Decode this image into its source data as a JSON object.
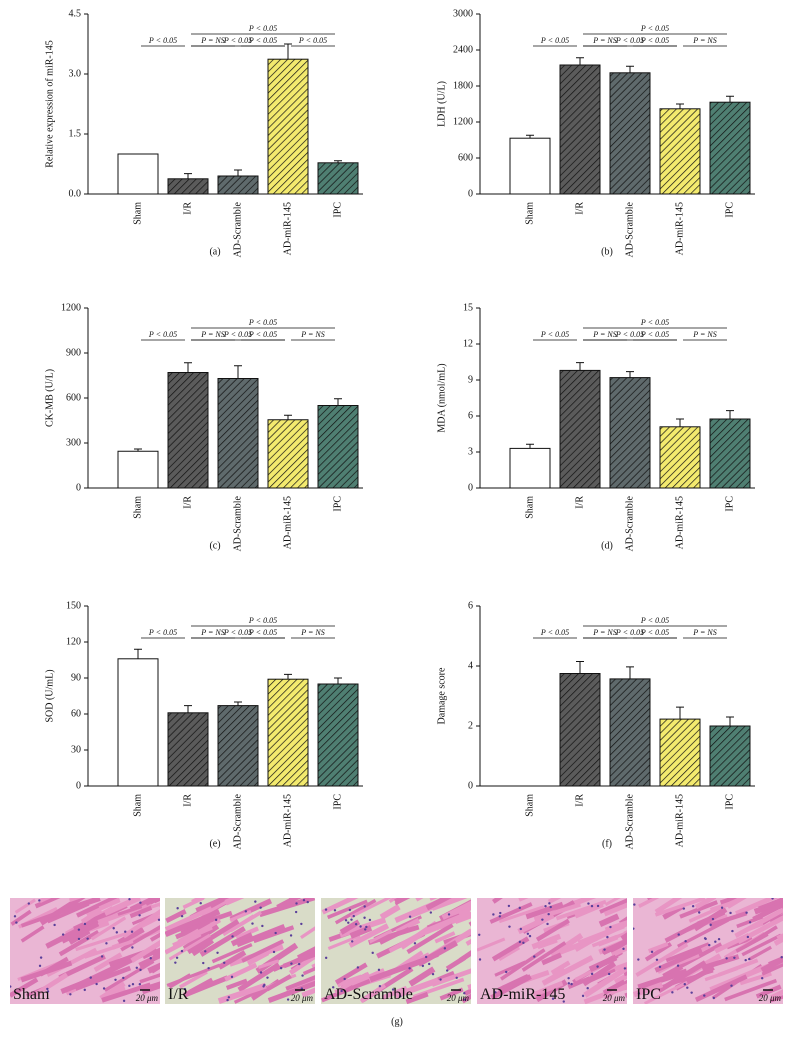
{
  "chart_data": [
    {
      "type": "bar",
      "panel_label": "(a)",
      "y_label": "Relative expression of miR-145",
      "categories": [
        "Sham",
        "I/R",
        "AD-Scramble",
        "AD-miR-145",
        "IPC"
      ],
      "values": [
        1.0,
        0.38,
        0.45,
        3.37,
        0.78
      ],
      "errors": [
        null,
        0.13,
        0.15,
        0.38,
        0.05
      ],
      "colors": [
        "#ffffff",
        "#5b5b5b",
        "#5f6a6c",
        "#f3ea6e",
        "#4f7f72"
      ],
      "hatch": [
        false,
        true,
        true,
        true,
        true
      ],
      "ylim": [
        0,
        4.5
      ],
      "yticks": [
        {
          "value": 0,
          "label": "0.0"
        },
        1.5,
        {
          "value": 3,
          "label": "3.0"
        },
        4.5
      ],
      "brackets": [
        {
          "from": "Sham",
          "to": "I/R",
          "label": "P < 0.05"
        },
        {
          "from": "I/R",
          "to": "AD-Scramble",
          "label": "P = NS"
        },
        {
          "from": "AD-Scramble",
          "to": "AD-miR-145",
          "label": "P < 0.05"
        },
        {
          "from": "AD-miR-145",
          "to": "IPC",
          "label": "P < 0.05"
        },
        {
          "from": "I/R",
          "to": "AD-miR-145",
          "label": "P < 0.05"
        },
        {
          "from": "I/R",
          "to": "IPC",
          "label": "P < 0.05"
        }
      ]
    },
    {
      "type": "bar",
      "panel_label": "(b)",
      "y_label": "LDH (U/L)",
      "categories": [
        "Sham",
        "I/R",
        "AD-Scramble",
        "AD-miR-145",
        "IPC"
      ],
      "values": [
        930,
        2150,
        2020,
        1420,
        1530
      ],
      "errors": [
        50,
        120,
        110,
        80,
        100
      ],
      "colors": [
        "#ffffff",
        "#5b5b5b",
        "#5f6a6c",
        "#f3ea6e",
        "#4f7f72"
      ],
      "hatch": [
        false,
        true,
        true,
        true,
        true
      ],
      "ylim": [
        0,
        3000
      ],
      "yticks": [
        0,
        600,
        1200,
        1800,
        2400,
        3000
      ],
      "brackets": [
        {
          "from": "Sham",
          "to": "I/R",
          "label": "P < 0.05"
        },
        {
          "from": "I/R",
          "to": "AD-Scramble",
          "label": "P = NS"
        },
        {
          "from": "AD-Scramble",
          "to": "AD-miR-145",
          "label": "P < 0.05"
        },
        {
          "from": "AD-miR-145",
          "to": "IPC",
          "label": "P = NS"
        },
        {
          "from": "I/R",
          "to": "AD-miR-145",
          "label": "P < 0.05"
        },
        {
          "from": "I/R",
          "to": "IPC",
          "label": "P < 0.05"
        }
      ]
    },
    {
      "type": "bar",
      "panel_label": "(c)",
      "y_label": "CK-MB (U/L)",
      "categories": [
        "Sham",
        "I/R",
        "AD-Scramble",
        "AD-miR-145",
        "IPC"
      ],
      "values": [
        245,
        770,
        730,
        455,
        550
      ],
      "errors": [
        15,
        65,
        85,
        30,
        45
      ],
      "colors": [
        "#ffffff",
        "#5b5b5b",
        "#5f6a6c",
        "#f3ea6e",
        "#4f7f72"
      ],
      "hatch": [
        false,
        true,
        true,
        true,
        true
      ],
      "ylim": [
        0,
        1200
      ],
      "yticks": [
        0,
        300,
        600,
        900,
        1200
      ],
      "brackets": [
        {
          "from": "Sham",
          "to": "I/R",
          "label": "P < 0.05"
        },
        {
          "from": "I/R",
          "to": "AD-Scramble",
          "label": "P = NS"
        },
        {
          "from": "AD-Scramble",
          "to": "AD-miR-145",
          "label": "P < 0.05"
        },
        {
          "from": "AD-miR-145",
          "to": "IPC",
          "label": "P = NS"
        },
        {
          "from": "I/R",
          "to": "AD-miR-145",
          "label": "P < 0.05"
        },
        {
          "from": "I/R",
          "to": "IPC",
          "label": "P < 0.05"
        }
      ]
    },
    {
      "type": "bar",
      "panel_label": "(d)",
      "y_label": "MDA (nmol/mL)",
      "categories": [
        "Sham",
        "I/R",
        "AD-Scramble",
        "AD-miR-145",
        "IPC"
      ],
      "values": [
        3.3,
        9.8,
        9.2,
        5.1,
        5.75
      ],
      "errors": [
        0.35,
        0.65,
        0.5,
        0.65,
        0.7
      ],
      "colors": [
        "#ffffff",
        "#5b5b5b",
        "#5f6a6c",
        "#f3ea6e",
        "#4f7f72"
      ],
      "hatch": [
        false,
        true,
        true,
        true,
        true
      ],
      "ylim": [
        0,
        15
      ],
      "yticks": [
        0,
        3,
        6,
        9,
        12,
        15
      ],
      "brackets": [
        {
          "from": "Sham",
          "to": "I/R",
          "label": "P < 0.05"
        },
        {
          "from": "I/R",
          "to": "AD-Scramble",
          "label": "P = NS"
        },
        {
          "from": "AD-Scramble",
          "to": "AD-miR-145",
          "label": "P < 0.05"
        },
        {
          "from": "AD-miR-145",
          "to": "IPC",
          "label": "P = NS"
        },
        {
          "from": "I/R",
          "to": "AD-miR-145",
          "label": "P < 0.05"
        },
        {
          "from": "I/R",
          "to": "IPC",
          "label": "P < 0.05"
        }
      ]
    },
    {
      "type": "bar",
      "panel_label": "(e)",
      "y_label": "SOD (U/mL)",
      "categories": [
        "Sham",
        "I/R",
        "AD-Scramble",
        "AD-miR-145",
        "IPC"
      ],
      "values": [
        106,
        61,
        67,
        89,
        85
      ],
      "errors": [
        8,
        6,
        3,
        4,
        5
      ],
      "colors": [
        "#ffffff",
        "#5b5b5b",
        "#5f6a6c",
        "#f3ea6e",
        "#4f7f72"
      ],
      "hatch": [
        false,
        true,
        true,
        true,
        true
      ],
      "ylim": [
        0,
        150
      ],
      "yticks": [
        0,
        30,
        60,
        90,
        120,
        150
      ],
      "brackets": [
        {
          "from": "Sham",
          "to": "I/R",
          "label": "P < 0.05"
        },
        {
          "from": "I/R",
          "to": "AD-Scramble",
          "label": "P = NS"
        },
        {
          "from": "AD-Scramble",
          "to": "AD-miR-145",
          "label": "P < 0.05"
        },
        {
          "from": "AD-miR-145",
          "to": "IPC",
          "label": "P = NS"
        },
        {
          "from": "I/R",
          "to": "AD-miR-145",
          "label": "P < 0.05"
        },
        {
          "from": "I/R",
          "to": "IPC",
          "label": "P < 0.05"
        }
      ]
    },
    {
      "type": "bar",
      "panel_label": "(f)",
      "y_label": "Damage score",
      "categories": [
        "Sham",
        "I/R",
        "AD-Scramble",
        "AD-miR-145",
        "IPC"
      ],
      "values": [
        0,
        3.75,
        3.57,
        2.23,
        2.0
      ],
      "errors": [
        null,
        0.4,
        0.4,
        0.4,
        0.3
      ],
      "colors": [
        "#ffffff",
        "#5b5b5b",
        "#5f6a6c",
        "#f3ea6e",
        "#4f7f72"
      ],
      "hatch": [
        false,
        true,
        true,
        true,
        true
      ],
      "ylim": [
        0,
        6
      ],
      "yticks": [
        0,
        2,
        4,
        6
      ],
      "brackets": [
        {
          "from": "Sham",
          "to": "I/R",
          "label": "P < 0.05"
        },
        {
          "from": "I/R",
          "to": "AD-Scramble",
          "label": "P = NS"
        },
        {
          "from": "AD-Scramble",
          "to": "AD-miR-145",
          "label": "P < 0.05"
        },
        {
          "from": "AD-miR-145",
          "to": "IPC",
          "label": "P = NS"
        },
        {
          "from": "I/R",
          "to": "AD-miR-145",
          "label": "P < 0.05"
        },
        {
          "from": "I/R",
          "to": "IPC",
          "label": "P < 0.05"
        }
      ]
    }
  ],
  "histology": {
    "caption": "(g)",
    "panels": [
      {
        "label": "Sham",
        "scale": "20 μm"
      },
      {
        "label": "I/R",
        "scale": "20 μm"
      },
      {
        "label": "AD-Scramble",
        "scale": "20 μm"
      },
      {
        "label": "AD-miR-145",
        "scale": "20 μm"
      },
      {
        "label": "IPC",
        "scale": "20 μm"
      }
    ]
  }
}
